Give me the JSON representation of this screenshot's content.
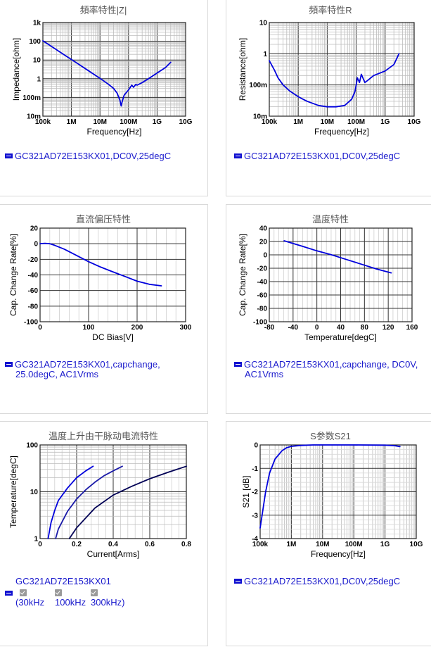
{
  "panels": [
    {
      "title": "頻率特性|Z|",
      "legend": "GC321AD72E153KX01,DC0V,25degC"
    },
    {
      "title": "頻率特性R",
      "legend": "GC321AD72E153KX01,DC0V,25degC"
    },
    {
      "title": "直流偏压特性",
      "legend_line1": "GC321AD72E153KX01,capchange,",
      "legend_line2": "25.0degC, AC1Vrms"
    },
    {
      "title": "温度特性",
      "legend_line1": "GC321AD72E153KX01,capchange, DC0V,",
      "legend_line2": "AC1Vrms"
    },
    {
      "title": "温度上升由干脉动电流特性",
      "legend": "GC321AD72E153KX01",
      "checks": [
        "(30kHz",
        "100kHz",
        "300kHz)"
      ]
    },
    {
      "title": "S参数S21",
      "legend": "GC321AD72E153KX01,DC0V,25degC"
    }
  ],
  "chart_data": [
    {
      "type": "line",
      "title": "頻率特性|Z|",
      "xlabel": "Frequency[Hz]",
      "ylabel": "Impedance[ohm]",
      "xscale": "log",
      "yscale": "log",
      "xlim": [
        100000,
        10000000000
      ],
      "ylim": [
        0.01,
        1000
      ],
      "xticks": [
        "100k",
        "1M",
        "10M",
        "100M",
        "1G",
        "10G"
      ],
      "yticks": [
        "1k",
        "100",
        "10",
        "1",
        "100m",
        "10m"
      ],
      "grid": true,
      "series": [
        {
          "color": "#0000dd",
          "x": [
            100000,
            200000,
            500000,
            1000000,
            2000000,
            5000000,
            10000000,
            20000000,
            30000000,
            40000000,
            50000000,
            55000000,
            60000000,
            70000000,
            80000000,
            100000000,
            130000000,
            150000000,
            180000000,
            200000000,
            300000000,
            500000000,
            1000000000,
            2000000000,
            3000000000
          ],
          "y": [
            105,
            53,
            21,
            10.6,
            5.3,
            2.1,
            1.05,
            0.5,
            0.3,
            0.17,
            0.07,
            0.035,
            0.06,
            0.13,
            0.17,
            0.25,
            0.45,
            0.35,
            0.5,
            0.45,
            0.62,
            1.0,
            2.0,
            4.0,
            7.5
          ]
        }
      ]
    },
    {
      "type": "line",
      "title": "頻率特性R",
      "xlabel": "Frequency[Hz]",
      "ylabel": "Resistance[ohm]",
      "xscale": "log",
      "yscale": "log",
      "xlim": [
        100000,
        10000000000
      ],
      "ylim": [
        0.01,
        10
      ],
      "xticks": [
        "100k",
        "1M",
        "10M",
        "100M",
        "1G",
        "10G"
      ],
      "yticks": [
        "10",
        "1",
        "100m",
        "10m"
      ],
      "grid": true,
      "series": [
        {
          "color": "#0000dd",
          "x": [
            100000,
            150000,
            200000,
            300000,
            500000,
            1000000,
            2000000,
            5000000,
            10000000,
            20000000,
            40000000,
            70000000,
            90000000,
            100000000,
            110000000,
            130000000,
            150000000,
            180000000,
            200000000,
            250000000,
            400000000,
            1000000000,
            2000000000,
            3000000000
          ],
          "y": [
            0.6,
            0.3,
            0.17,
            0.1,
            0.065,
            0.042,
            0.03,
            0.022,
            0.02,
            0.02,
            0.022,
            0.035,
            0.06,
            0.1,
            0.17,
            0.12,
            0.22,
            0.15,
            0.12,
            0.14,
            0.2,
            0.28,
            0.45,
            1.0
          ]
        }
      ]
    },
    {
      "type": "line",
      "title": "直流偏压特性",
      "xlabel": "DC Bias[V]",
      "ylabel": "Cap. Change Rate[%]",
      "xlim": [
        0,
        300
      ],
      "ylim": [
        -100,
        20
      ],
      "xticks": [
        0,
        100,
        200,
        300
      ],
      "yticks": [
        20,
        0,
        -20,
        -40,
        -60,
        -80,
        -100
      ],
      "grid": true,
      "series": [
        {
          "color": "#0000dd",
          "x": [
            0,
            10,
            20,
            30,
            50,
            75,
            100,
            125,
            150,
            175,
            200,
            225,
            250
          ],
          "y": [
            0,
            0.5,
            0,
            -2,
            -7,
            -15,
            -23,
            -30,
            -36,
            -42,
            -48,
            -52,
            -54
          ]
        }
      ]
    },
    {
      "type": "line",
      "title": "温度特性",
      "xlabel": "Temperature[degC]",
      "ylabel": "Cap. Change Rate[%]",
      "xlim": [
        -80,
        160
      ],
      "ylim": [
        -100,
        40
      ],
      "xticks": [
        -80,
        -40,
        0,
        40,
        80,
        120,
        160
      ],
      "yticks": [
        40,
        20,
        0,
        -20,
        -40,
        -60,
        -80,
        -100
      ],
      "grid": true,
      "series": [
        {
          "color": "#0000dd",
          "x": [
            -55,
            -25,
            0,
            25,
            50,
            75,
            100,
            125
          ],
          "y": [
            21,
            13,
            6,
            0,
            -7,
            -14,
            -21,
            -27
          ]
        }
      ]
    },
    {
      "type": "line",
      "title": "温度上升由干脉动电流特性",
      "xlabel": "Current[Arms]",
      "ylabel": "Temperature[degC]",
      "yscale": "log",
      "xlim": [
        0,
        0.8
      ],
      "ylim": [
        1,
        100
      ],
      "xticks": [
        0,
        0.2,
        0.4,
        0.6,
        0.8
      ],
      "yticks": [
        "100",
        "10",
        "1"
      ],
      "grid": true,
      "series": [
        {
          "name": "30kHz",
          "color": "#0000dd",
          "x": [
            0.044,
            0.06,
            0.08,
            0.1,
            0.15,
            0.2,
            0.25,
            0.29
          ],
          "y": [
            1,
            2.2,
            4,
            6.5,
            12,
            20,
            28,
            35
          ]
        },
        {
          "name": "100kHz",
          "color": "#1a1aa8",
          "x": [
            0.085,
            0.1,
            0.15,
            0.2,
            0.25,
            0.3,
            0.35,
            0.4,
            0.45
          ],
          "y": [
            1,
            1.6,
            3.8,
            7,
            11,
            16,
            22,
            28,
            35
          ]
        },
        {
          "name": "300kHz",
          "color": "#000055",
          "x": [
            0.16,
            0.2,
            0.3,
            0.4,
            0.5,
            0.6,
            0.7,
            0.8
          ],
          "y": [
            1,
            1.7,
            4.5,
            8.5,
            13,
            19,
            26,
            35
          ]
        }
      ]
    },
    {
      "type": "line",
      "title": "S参数S21",
      "xlabel": "Frequency[Hz]",
      "ylabel": "S21 [dB]",
      "xscale": "log",
      "xlim": [
        100000,
        10000000000
      ],
      "ylim": [
        -4,
        0
      ],
      "xticks": [
        "100k",
        "1M",
        "10M",
        "100M",
        "1G",
        "10G"
      ],
      "yticks": [
        0,
        -1,
        -2,
        -3,
        -4
      ],
      "grid": true,
      "series": [
        {
          "color": "#0000dd",
          "x": [
            100000,
            150000,
            200000,
            300000,
            500000,
            700000,
            1000000,
            2000000,
            5000000,
            10000000,
            100000000,
            1000000000,
            2000000000,
            3000000000
          ],
          "y": [
            -3.55,
            -2.0,
            -1.2,
            -0.6,
            -0.25,
            -0.12,
            -0.06,
            -0.02,
            0,
            0,
            0,
            -0.01,
            -0.03,
            -0.07
          ]
        }
      ]
    }
  ]
}
